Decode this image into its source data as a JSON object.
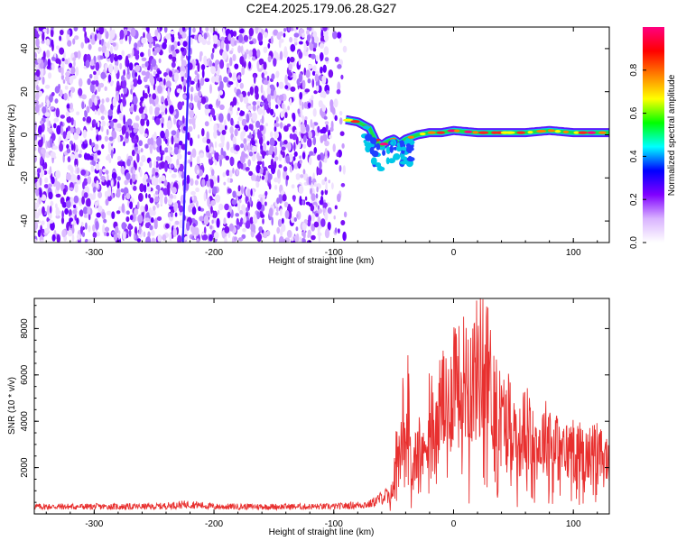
{
  "title": "C2E4.2025.179.06.28.G27",
  "chart_data": [
    {
      "type": "heatmap",
      "panel": "spectrogram",
      "xlabel": "Height of straight line (km)",
      "ylabel": "Frequency (Hz)",
      "xlim": [
        -350,
        130
      ],
      "ylim": [
        -50,
        50
      ],
      "xticks": [
        -300,
        -200,
        -100,
        0,
        100
      ],
      "yticks": [
        -40,
        -20,
        0,
        20,
        40
      ],
      "colorbar": {
        "label": "Normalized spectral amplitude",
        "range": [
          0,
          1
        ],
        "ticks": [
          "0.0",
          "0.2",
          "0.4",
          "0.6",
          "0.8"
        ],
        "colors": [
          "#ffffff",
          "#d9b3ff",
          "#8000ff",
          "#0000ff",
          "#00ffff",
          "#00ff00",
          "#ffff00",
          "#ff8000",
          "#ff0000",
          "#ff0080"
        ]
      },
      "signal_trace": {
        "height_km": [
          -90,
          -80,
          -70,
          -65,
          -60,
          -55,
          -50,
          -45,
          -40,
          -35,
          -30,
          -20,
          -10,
          0,
          20,
          40,
          60,
          80,
          100,
          130
        ],
        "frequency_hz": [
          7,
          6,
          3,
          -3,
          -5,
          -3,
          -2,
          -4,
          -2,
          -1,
          0,
          1,
          1,
          2,
          1,
          1,
          1,
          2,
          1,
          1
        ]
      },
      "noise_extent_km": [
        -350,
        -90
      ],
      "drift_line": {
        "height_km": [
          -226,
          -220
        ],
        "frequency_hz": [
          -50,
          50
        ]
      }
    },
    {
      "type": "line",
      "panel": "snr",
      "xlabel": "Height of straight line (km)",
      "ylabel": "SNR (10 * v/v)",
      "xlim": [
        -350,
        130
      ],
      "ylim": [
        0,
        9300
      ],
      "xticks": [
        -300,
        -200,
        -100,
        0,
        100
      ],
      "yticks": [
        2000,
        4000,
        6000,
        8000
      ],
      "color": "#e8302f",
      "series": [
        {
          "x": [
            -350,
            -300,
            -250,
            -220,
            -200,
            -150,
            -100,
            -70,
            -55,
            -50,
            -47,
            -45,
            -42,
            -40,
            -38,
            -35,
            -30,
            -25,
            -20,
            -15,
            -10,
            -5,
            0,
            3,
            5,
            10,
            15,
            20,
            25,
            28,
            30,
            35,
            40,
            45,
            50,
            55,
            60,
            70,
            80,
            90,
            100,
            110,
            120,
            125,
            130
          ],
          "y": [
            300,
            300,
            300,
            400,
            300,
            300,
            300,
            400,
            800,
            1500,
            5400,
            2500,
            5800,
            3000,
            6600,
            2000,
            5500,
            3200,
            6500,
            4500,
            7000,
            5800,
            8200,
            9200,
            7000,
            8500,
            8000,
            8600,
            9100,
            8500,
            7800,
            6800,
            5500,
            6000,
            5000,
            4200,
            5200,
            4000,
            4800,
            3500,
            4000,
            3400,
            3700,
            3200,
            3300
          ]
        }
      ]
    }
  ]
}
